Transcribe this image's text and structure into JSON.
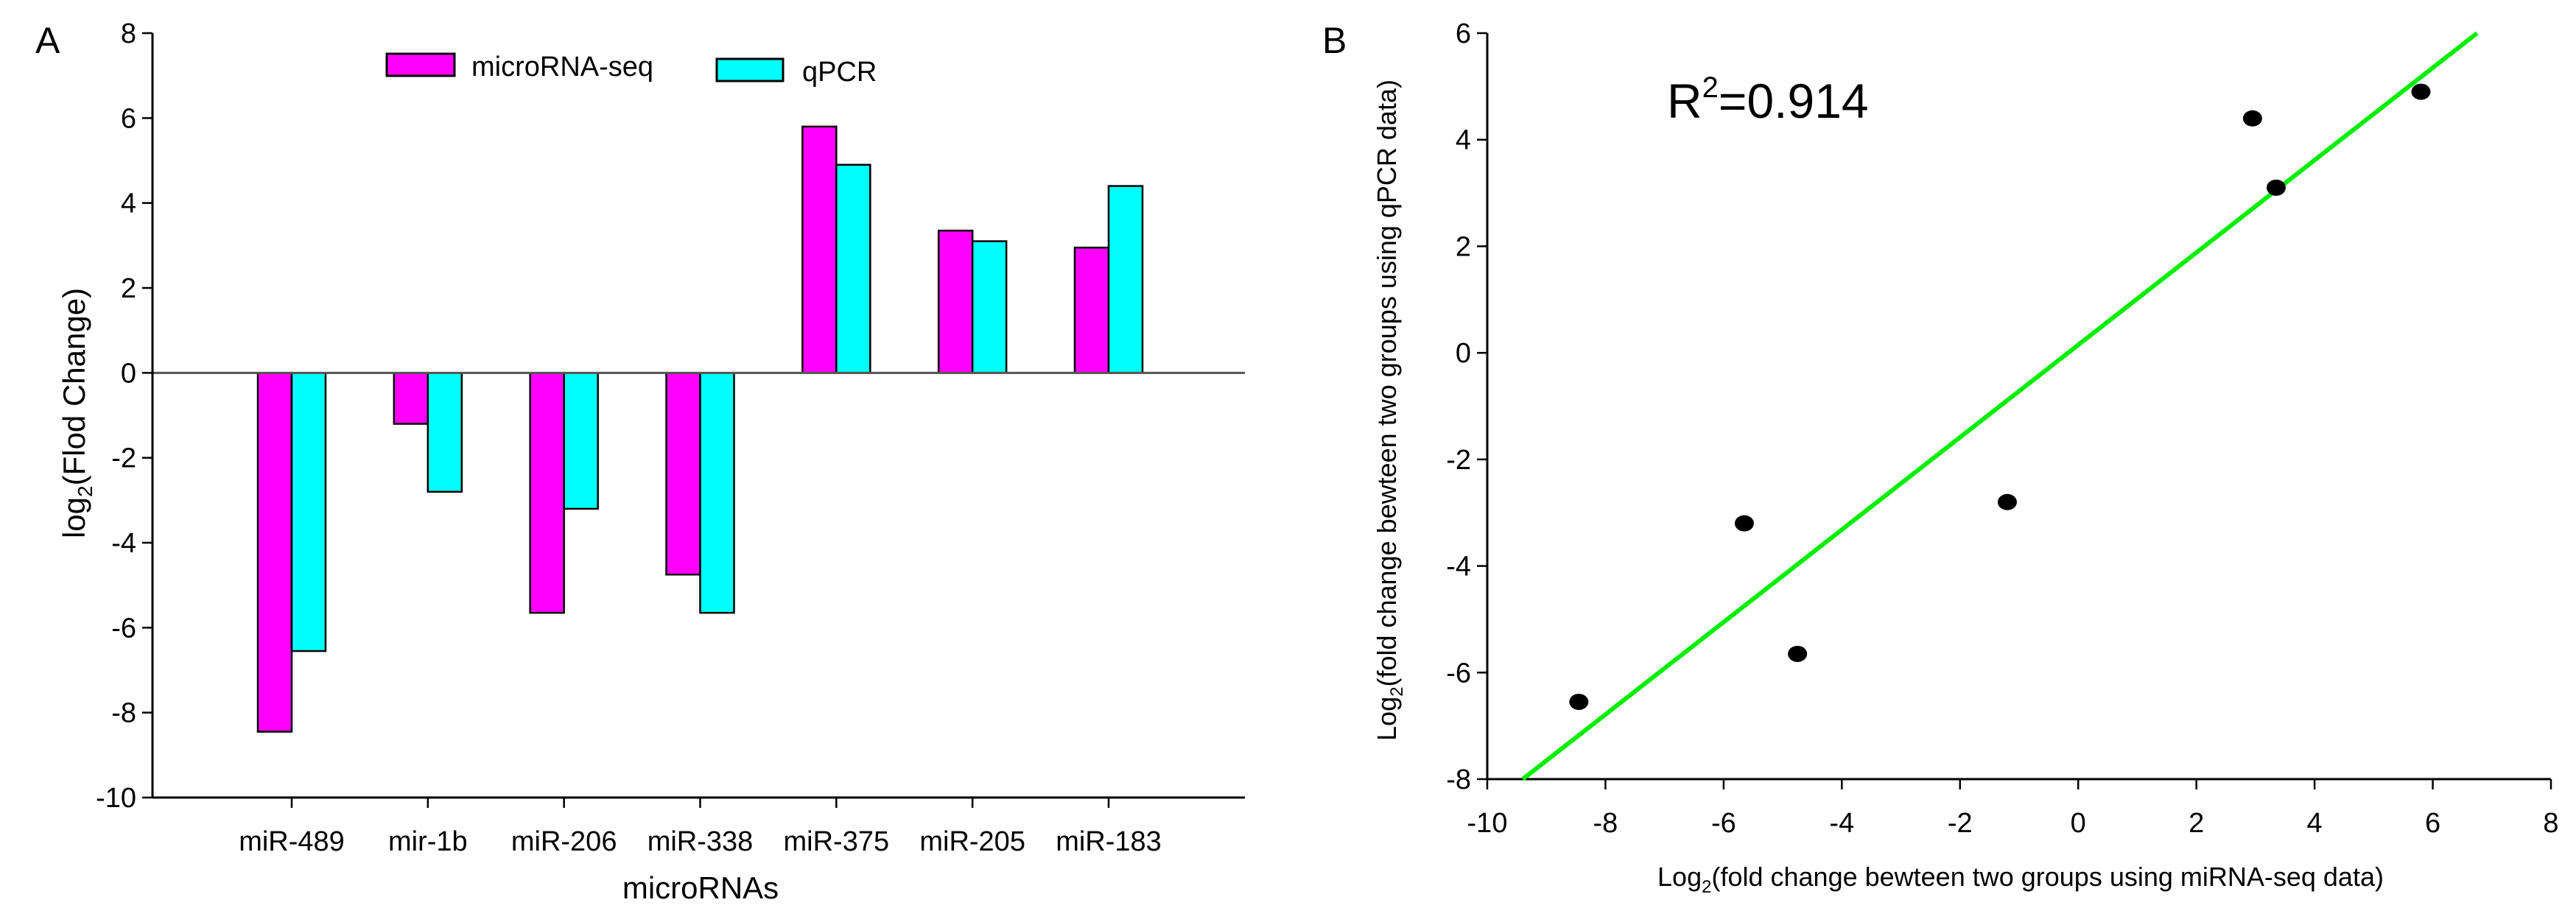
{
  "chart_data": [
    {
      "panel_label": "A",
      "type": "bar",
      "title": "",
      "xlabel": "microRNAs",
      "ylabel_main": "log",
      "ylabel_sub": "2",
      "ylabel_rest": "(Flod Change)",
      "ylim": [
        -10,
        8
      ],
      "yticks": [
        -10,
        -8,
        -6,
        -4,
        -2,
        0,
        2,
        4,
        6,
        8
      ],
      "grid": false,
      "legend_position": "top-center",
      "categories": [
        "miR-489",
        "mir-1b",
        "miR-206",
        "miR-338",
        "miR-375",
        "miR-205",
        "miR-183"
      ],
      "series": [
        {
          "name": "microRNA-seq",
          "color": "#ff00ff",
          "values": [
            -8.45,
            -1.2,
            -5.65,
            -4.75,
            5.8,
            3.35,
            2.95
          ]
        },
        {
          "name": "qPCR",
          "color": "#00ffff",
          "values": [
            -6.55,
            -2.8,
            -3.2,
            -5.65,
            4.9,
            3.1,
            4.4
          ]
        }
      ]
    },
    {
      "panel_label": "B",
      "type": "scatter",
      "xlabel_main": "Log",
      "xlabel_sub": "2",
      "xlabel_rest": "(fold change bewteen two groups using miRNA-seq data)",
      "ylabel_main": "Log",
      "ylabel_sub": "2",
      "ylabel_rest": "(fold change bewteen two groups using qPCR data)",
      "xlim": [
        -10,
        8
      ],
      "ylim": [
        -8,
        6
      ],
      "xticks": [
        -10,
        -8,
        -6,
        -4,
        -2,
        0,
        2,
        4,
        6,
        8
      ],
      "yticks": [
        -8,
        -6,
        -4,
        -2,
        0,
        2,
        4,
        6
      ],
      "grid": false,
      "annotation_main": "R",
      "annotation_sup": "2",
      "annotation_rest": "=0.914",
      "points": [
        {
          "x": -8.45,
          "y": -6.55
        },
        {
          "x": -5.65,
          "y": -3.2
        },
        {
          "x": -4.75,
          "y": -5.65
        },
        {
          "x": -1.2,
          "y": -2.8
        },
        {
          "x": 2.95,
          "y": 4.4
        },
        {
          "x": 3.35,
          "y": 3.1
        },
        {
          "x": 5.8,
          "y": 4.9
        }
      ],
      "fit_line": {
        "x": [
          -9.4,
          6.75
        ],
        "y": [
          -8,
          6
        ],
        "color": "#00ee00"
      },
      "point_color": "#000000"
    }
  ]
}
